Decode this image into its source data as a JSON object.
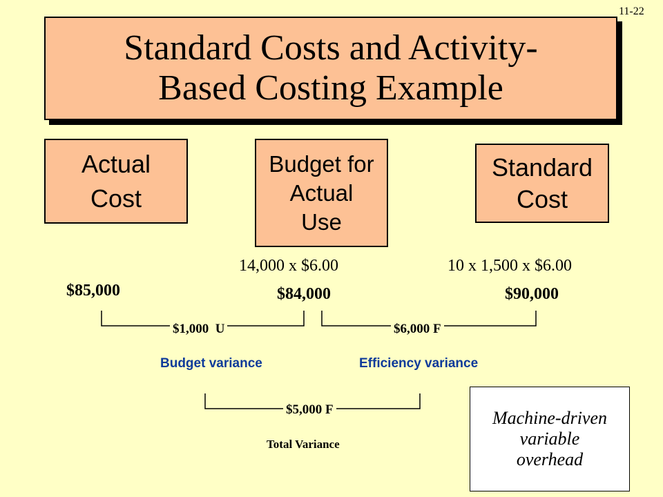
{
  "slide_number": "11-22",
  "title": {
    "line1": "Standard Costs and Activity-",
    "line2": "Based Costing Example"
  },
  "columns": {
    "actual": {
      "line1": "Actual",
      "line2": "Cost",
      "amount": "$85,000"
    },
    "budget": {
      "line1": "Budget for",
      "line2": "Actual",
      "line3": "Use",
      "formula": "14,000 x $6.00",
      "amount": "$84,000"
    },
    "standard": {
      "line1": "Standard",
      "line2": "Cost",
      "formula": "10 x 1,500 x $6.00",
      "amount": "$90,000"
    }
  },
  "variances": {
    "budget": {
      "value": "$1,000",
      "flag": "U",
      "label": "Budget variance"
    },
    "efficiency": {
      "value": "$6,000",
      "flag": "F",
      "label": "Efficiency variance"
    },
    "total": {
      "value": "$5,000",
      "flag": "F",
      "label": "Total Variance"
    }
  },
  "note": {
    "line1": "Machine-driven",
    "line2": "variable",
    "line3": "overhead"
  },
  "colors": {
    "background": "#ffffc6",
    "box_fill": "#fdc195",
    "variance_label": "#0d3a9a"
  }
}
